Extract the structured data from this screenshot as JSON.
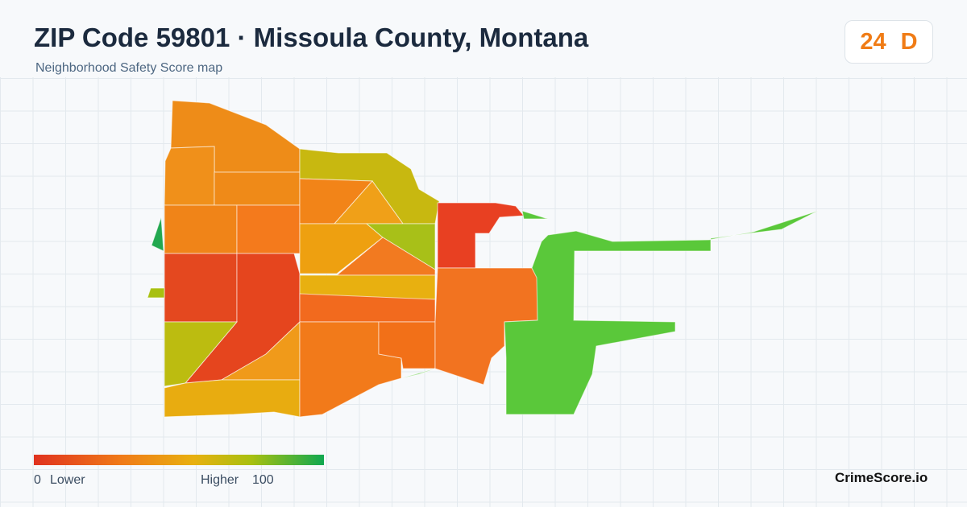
{
  "header": {
    "title": "ZIP Code 59801 · Missoula County, Montana",
    "subtitle": "Neighborhood Safety Score map"
  },
  "badge": {
    "score": "24",
    "grade": "D"
  },
  "legend": {
    "min": "0",
    "min_label": "Lower",
    "max_label": "Higher",
    "max": "100"
  },
  "footer": {
    "brand": "CrimeScore.io"
  }
}
